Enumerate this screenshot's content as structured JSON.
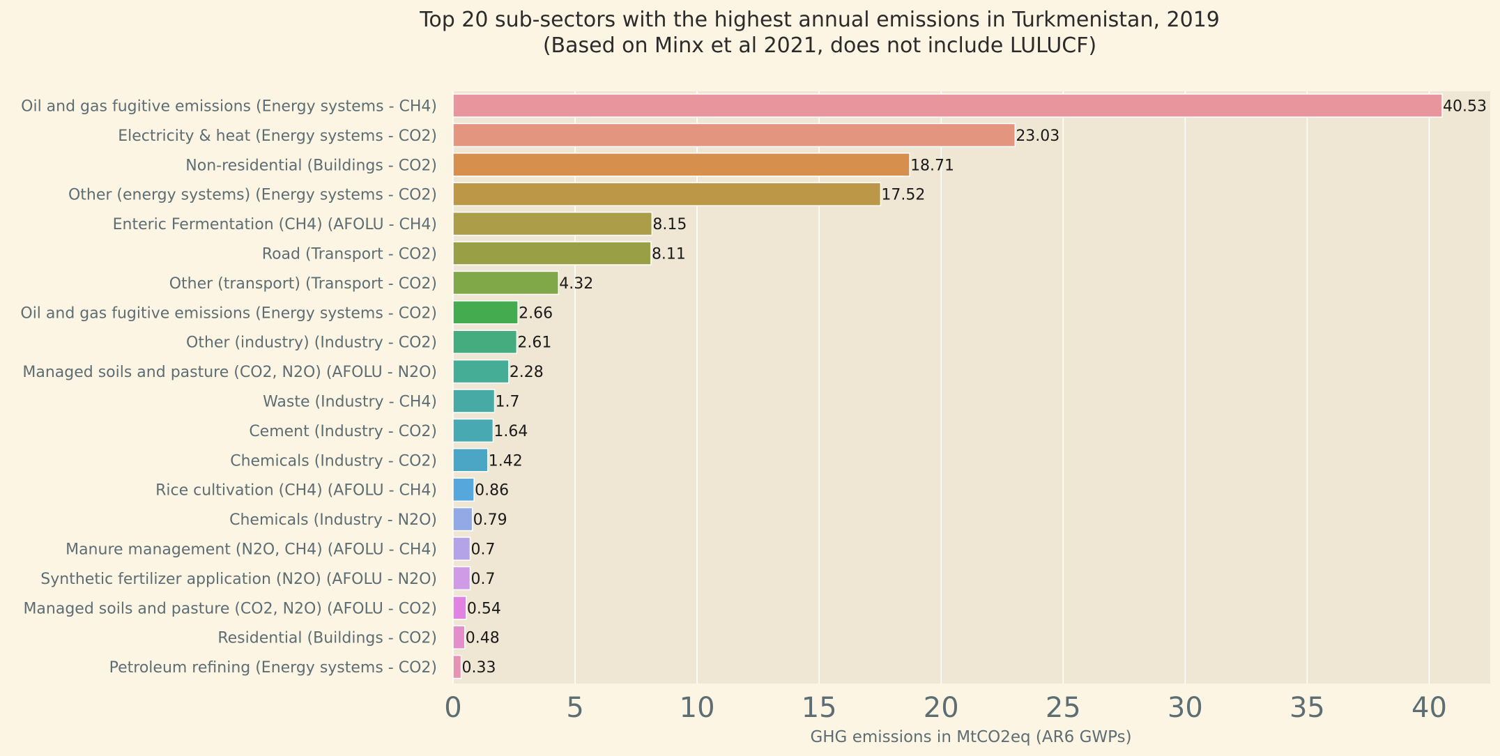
{
  "chart_data": {
    "type": "bar",
    "orientation": "horizontal",
    "title": "Top 20 sub-sectors with the highest annual emissions in Turkmenistan, 2019",
    "subtitle": "(Based on Minx et al 2021, does not include LULUCF)",
    "xlabel": "GHG emissions in MtCO2eq (AR6 GWPs)",
    "ylabel": "",
    "xlim": [
      0,
      42.5
    ],
    "xticks": [
      0,
      5,
      10,
      15,
      20,
      25,
      30,
      35,
      40
    ],
    "grid": true,
    "legend": "none",
    "colors": {
      "page_background": "#fcf5e3",
      "plot_background": "#efe7d4",
      "grid": "#ffffff"
    },
    "categories": [
      "Oil and gas fugitive emissions (Energy systems - CH4)",
      "Electricity & heat (Energy systems - CO2)",
      "Non-residential (Buildings - CO2)",
      "Other (energy systems) (Energy systems - CO2)",
      "Enteric Fermentation (CH4) (AFOLU - CH4)",
      "Road (Transport - CO2)",
      "Other (transport) (Transport - CO2)",
      "Oil and gas fugitive emissions (Energy systems - CO2)",
      "Other (industry) (Industry - CO2)",
      "Managed soils and pasture (CO2, N2O) (AFOLU - N2O)",
      "Waste (Industry - CH4)",
      "Cement (Industry - CO2)",
      "Chemicals (Industry - CO2)",
      "Rice cultivation (CH4) (AFOLU - CH4)",
      "Chemicals (Industry - N2O)",
      "Manure management (N2O, CH4) (AFOLU - CH4)",
      "Synthetic fertilizer application (N2O) (AFOLU - N2O)",
      "Managed soils and pasture (CO2, N2O) (AFOLU - CO2)",
      "Residential (Buildings - CO2)",
      "Petroleum refining (Energy systems - CO2)"
    ],
    "values": [
      40.53,
      23.03,
      18.71,
      17.52,
      8.15,
      8.11,
      4.32,
      2.66,
      2.61,
      2.28,
      1.7,
      1.64,
      1.42,
      0.86,
      0.79,
      0.7,
      0.7,
      0.54,
      0.48,
      0.33
    ],
    "value_labels": [
      "40.53",
      "23.03",
      "18.71",
      "17.52",
      "8.15",
      "8.11",
      "4.32",
      "2.66",
      "2.61",
      "2.28",
      "1.7",
      "1.64",
      "1.42",
      "0.86",
      "0.79",
      "0.7",
      "0.7",
      "0.54",
      "0.48",
      "0.33"
    ],
    "bar_colors": [
      "#e8959d",
      "#e39580",
      "#d68f4d",
      "#bd9748",
      "#ac9d48",
      "#999f45",
      "#80a748",
      "#44ac4e",
      "#44ac7e",
      "#45ad96",
      "#47aaa4",
      "#48a9b3",
      "#4aa6c4",
      "#55a7dc",
      "#93a9e6",
      "#b5a3e8",
      "#cf9be6",
      "#e183e1",
      "#e48fca",
      "#e793b2"
    ]
  }
}
